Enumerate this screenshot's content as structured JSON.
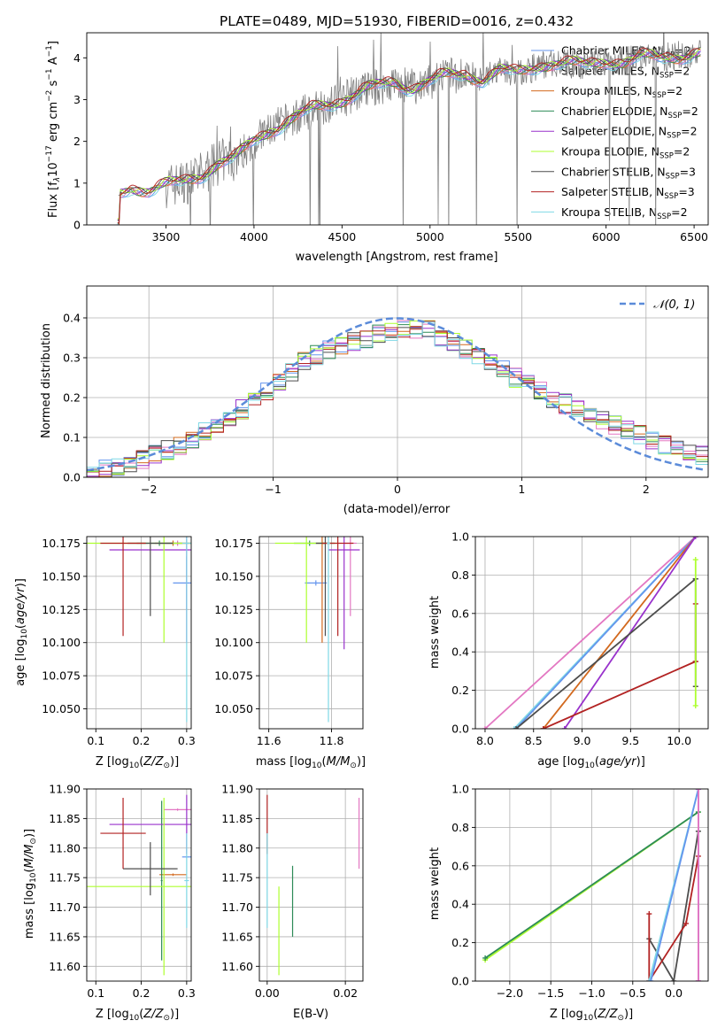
{
  "colors": {
    "chabrier_miles": "#6495ED",
    "salpeter_miles": "#E377C2",
    "kroupa_miles": "#D2691E",
    "chabrier_elodie": "#2E8B57",
    "salpeter_elodie": "#9932CC",
    "kroupa_elodie": "#ADFF2F",
    "chabrier_stelib": "#4D4D4D",
    "salpeter_stelib": "#B22222",
    "kroupa_stelib": "#7FD8E6",
    "observed": "#808080",
    "normal": "#5B8BD9",
    "grid": "#B0B0B0"
  },
  "chart_data": [
    {
      "id": "spectrum",
      "type": "line",
      "title": "PLATE=0489, MJD=51930, FIBERID=0016, z=0.432",
      "xlabel": "wavelength [Angstrom, rest frame]",
      "ylabel": "Flux [f_λ 10^-17 erg cm^-2 s^-1 A^-1]",
      "xlim": [
        3050,
        6580
      ],
      "ylim": [
        0,
        4.6
      ],
      "xticks": [
        3500,
        4000,
        4500,
        5000,
        5500,
        6000,
        6500
      ],
      "yticks": [
        0,
        1,
        2,
        3,
        4
      ],
      "grid": false,
      "legend_position": "upper right",
      "observed_x": [
        3230,
        3300,
        3400,
        3500,
        3600,
        3700,
        3800,
        3900,
        4000,
        4100,
        4200,
        4300,
        4400,
        4500,
        4600,
        4700,
        4800,
        4900,
        5000,
        5100,
        5200,
        5300,
        5400,
        5500,
        5600,
        5700,
        5800,
        5900,
        6000,
        6100,
        6200,
        6300,
        6400,
        6500
      ],
      "observed_y": [
        0.7,
        0.9,
        0.85,
        0.95,
        1.0,
        1.2,
        1.5,
        1.6,
        2.0,
        2.3,
        2.5,
        2.7,
        2.85,
        3.0,
        3.2,
        3.3,
        3.4,
        3.3,
        3.45,
        3.55,
        3.6,
        3.5,
        3.7,
        3.6,
        3.8,
        3.9,
        3.85,
        3.8,
        3.95,
        3.9,
        4.0,
        4.0,
        4.05,
        4.1
      ],
      "legend": [
        {
          "name": "Chabrier MILES, N_SSP=2",
          "label_main": "Chabrier MILES, N",
          "label_sub": "SSP",
          "label_tail": "=2",
          "color_key": "chabrier_miles"
        },
        {
          "name": "Salpeter MILES, N_SSP=2",
          "label_main": "Salpeter MILES, N",
          "label_sub": "SSP",
          "label_tail": "=2",
          "color_key": "salpeter_miles"
        },
        {
          "name": "Kroupa MILES, N_SSP=2",
          "label_main": "Kroupa MILES, N",
          "label_sub": "SSP",
          "label_tail": "=2",
          "color_key": "kroupa_miles"
        },
        {
          "name": "Chabrier ELODIE, N_SSP=2",
          "label_main": "Chabrier ELODIE, N",
          "label_sub": "SSP",
          "label_tail": "=2",
          "color_key": "chabrier_elodie"
        },
        {
          "name": "Salpeter ELODIE, N_SSP=2",
          "label_main": "Salpeter ELODIE, N",
          "label_sub": "SSP",
          "label_tail": "=2",
          "color_key": "salpeter_elodie"
        },
        {
          "name": "Kroupa ELODIE, N_SSP=2",
          "label_main": "Kroupa ELODIE, N",
          "label_sub": "SSP",
          "label_tail": "=2",
          "color_key": "kroupa_elodie"
        },
        {
          "name": "Chabrier STELIB, N_SSP=3",
          "label_main": "Chabrier STELIB, N",
          "label_sub": "SSP",
          "label_tail": "=3",
          "color_key": "chabrier_stelib"
        },
        {
          "name": "Salpeter STELIB, N_SSP=3",
          "label_main": "Salpeter STELIB, N",
          "label_sub": "SSP",
          "label_tail": "=3",
          "color_key": "salpeter_stelib"
        },
        {
          "name": "Kroupa STELIB, N_SSP=2",
          "label_main": "Kroupa STELIB, N",
          "label_sub": "SSP",
          "label_tail": "=2",
          "color_key": "kroupa_stelib"
        }
      ]
    },
    {
      "id": "residuals",
      "type": "line",
      "xlabel": "(data-model)/error",
      "ylabel": "Normed distribution",
      "xlim": [
        -2.5,
        2.5
      ],
      "ylim": [
        0,
        0.48
      ],
      "xticks": [
        -2,
        -1,
        0,
        1,
        2
      ],
      "yticks": [
        0.0,
        0.1,
        0.2,
        0.3,
        0.4
      ],
      "grid": true,
      "legend_position": "upper right",
      "legend_label": "𝒩(0, 1)",
      "hist_x": [
        -2.5,
        -2.25,
        -2.0,
        -1.75,
        -1.5,
        -1.25,
        -1.0,
        -0.75,
        -0.5,
        -0.25,
        0.0,
        0.25,
        0.5,
        0.75,
        1.0,
        1.25,
        1.5,
        1.75,
        2.0,
        2.25,
        2.5
      ],
      "hist_y": [
        0.01,
        0.03,
        0.05,
        0.08,
        0.12,
        0.17,
        0.23,
        0.29,
        0.33,
        0.35,
        0.37,
        0.37,
        0.33,
        0.29,
        0.24,
        0.2,
        0.16,
        0.13,
        0.1,
        0.07,
        0.05
      ]
    },
    {
      "id": "age_vs_z",
      "type": "scatter",
      "xlabel": "Z [log10(Z/Z⊙)]",
      "ylabel": "age [log10(age/yr)]",
      "xlim": [
        0.08,
        0.31
      ],
      "ylim": [
        10.035,
        10.18
      ],
      "xticks": [
        0.1,
        0.2,
        0.3
      ],
      "yticks": [
        10.05,
        10.075,
        10.1,
        10.125,
        10.15,
        10.175
      ],
      "grid": true,
      "points": [
        {
          "color_key": "chabrier_miles",
          "x": 0.3,
          "y": 10.145,
          "xerr": 0.03,
          "yerr": 0.02
        },
        {
          "color_key": "salpeter_miles",
          "x": 0.28,
          "y": 10.175,
          "xerr": 0.03,
          "yerr": 0.002
        },
        {
          "color_key": "kroupa_miles",
          "x": 0.27,
          "y": 10.175,
          "xerr": 0.04,
          "yerr": 0.002
        },
        {
          "color_key": "chabrier_elodie",
          "x": 0.24,
          "y": 10.175,
          "xerr": 0.05,
          "yerr": 0.002
        },
        {
          "color_key": "salpeter_elodie",
          "x": 0.3,
          "y": 10.17,
          "xerr": 0.17,
          "yerr": 0.07
        },
        {
          "color_key": "kroupa_elodie",
          "x": 0.25,
          "y": 10.175,
          "xerr": 0.17,
          "yerr": 0.075
        },
        {
          "color_key": "chabrier_stelib",
          "x": 0.22,
          "y": 10.175,
          "xerr": 0.05,
          "yerr": 0.055
        },
        {
          "color_key": "salpeter_stelib",
          "x": 0.16,
          "y": 10.175,
          "xerr": 0.05,
          "yerr": 0.07
        },
        {
          "color_key": "kroupa_stelib",
          "x": 0.3,
          "y": 10.175,
          "xerr": 0.01,
          "yerr": 0.135
        }
      ]
    },
    {
      "id": "age_vs_mass",
      "type": "scatter",
      "xlabel": "mass [log10(M/M⊙)]",
      "xlim": [
        11.57,
        11.9
      ],
      "ylim": [
        10.035,
        10.18
      ],
      "xticks": [
        11.6,
        11.8
      ],
      "yticks": [
        10.05,
        10.075,
        10.1,
        10.125,
        10.15,
        10.175
      ],
      "grid": true,
      "points": [
        {
          "color_key": "chabrier_miles",
          "x": 11.75,
          "y": 10.145,
          "xerr": 0.035,
          "yerr": 0.002
        },
        {
          "color_key": "salpeter_miles",
          "x": 11.86,
          "y": 10.175,
          "xerr": 0.02,
          "yerr": 0.055
        },
        {
          "color_key": "kroupa_miles",
          "x": 11.77,
          "y": 10.175,
          "xerr": 0.02,
          "yerr": 0.075
        },
        {
          "color_key": "chabrier_elodie",
          "x": 11.73,
          "y": 10.175,
          "xerr": 0.05,
          "yerr": 0.002
        },
        {
          "color_key": "salpeter_elodie",
          "x": 11.84,
          "y": 10.17,
          "xerr": 0.05,
          "yerr": 0.075
        },
        {
          "color_key": "kroupa_elodie",
          "x": 11.72,
          "y": 10.175,
          "xerr": 0.1,
          "yerr": 0.075
        },
        {
          "color_key": "chabrier_stelib",
          "x": 11.78,
          "y": 10.175,
          "xerr": 0.03,
          "yerr": 0.07
        },
        {
          "color_key": "salpeter_stelib",
          "x": 11.82,
          "y": 10.175,
          "xerr": 0.05,
          "yerr": 0.07
        },
        {
          "color_key": "kroupa_stelib",
          "x": 11.79,
          "y": 10.175,
          "xerr": 0.005,
          "yerr": 0.135
        }
      ]
    },
    {
      "id": "massweight_vs_age",
      "type": "line",
      "xlabel": "age log10(age/yr)",
      "ylabel": "mass weight",
      "xlim": [
        7.9,
        10.3
      ],
      "ylim": [
        0,
        1
      ],
      "xticks": [
        8.0,
        8.5,
        9.0,
        9.5,
        10.0
      ],
      "yticks": [
        0.0,
        0.2,
        0.4,
        0.6,
        0.8,
        1.0
      ],
      "grid": true,
      "lines": [
        {
          "color_key": "salpeter_miles",
          "x": [
            8.0,
            10.17
          ],
          "y": [
            0.0,
            1.0
          ]
        },
        {
          "color_key": "kroupa_stelib",
          "x": [
            8.3,
            10.17
          ],
          "y": [
            0.0,
            1.0
          ]
        },
        {
          "color_key": "chabrier_miles",
          "x": [
            8.32,
            10.17
          ],
          "y": [
            0.0,
            1.0
          ]
        },
        {
          "color_key": "kroupa_miles",
          "x": [
            8.6,
            10.17
          ],
          "y": [
            0.0,
            1.0
          ]
        },
        {
          "color_key": "salpeter_elodie",
          "x": [
            8.82,
            10.17
          ],
          "y": [
            0.0,
            1.0
          ]
        },
        {
          "color_key": "chabrier_stelib",
          "x": [
            8.32,
            10.17
          ],
          "y": [
            0.0,
            0.78
          ]
        },
        {
          "color_key": "salpeter_stelib",
          "x": [
            8.6,
            10.17
          ],
          "y": [
            0.0,
            0.35
          ]
        },
        {
          "color_key": "salpeter_stelib",
          "x": [
            10.17,
            10.17
          ],
          "y": [
            0.35,
            0.65
          ]
        },
        {
          "color_key": "chabrier_stelib",
          "x": [
            10.17,
            10.17
          ],
          "y": [
            0.22,
            0.78
          ]
        },
        {
          "color_key": "kroupa_elodie",
          "x": [
            10.17,
            10.17
          ],
          "y": [
            0.12,
            0.88
          ]
        }
      ]
    },
    {
      "id": "mass_vs_z",
      "type": "scatter",
      "xlabel": "Z [log10(Z/Z⊙)]",
      "ylabel": "mass [log10(M/M⊙)]",
      "xlim": [
        0.08,
        0.31
      ],
      "ylim": [
        11.575,
        11.9
      ],
      "xticks": [
        0.1,
        0.2,
        0.3
      ],
      "yticks": [
        11.6,
        11.65,
        11.7,
        11.75,
        11.8,
        11.85,
        11.9
      ],
      "grid": true,
      "points": [
        {
          "color_key": "chabrier_miles",
          "x": 0.3,
          "y": 11.785,
          "xerr": 0.01,
          "yerr": 0.002
        },
        {
          "color_key": "salpeter_miles",
          "x": 0.28,
          "y": 11.865,
          "xerr": 0.03,
          "yerr": 0.002
        },
        {
          "color_key": "kroupa_miles",
          "x": 0.27,
          "y": 11.755,
          "xerr": 0.03,
          "yerr": 0.002
        },
        {
          "color_key": "chabrier_elodie",
          "x": 0.245,
          "y": 11.745,
          "xerr": 0.002,
          "yerr": 0.135
        },
        {
          "color_key": "salpeter_elodie",
          "x": 0.3,
          "y": 11.84,
          "xerr": 0.17,
          "yerr": 0.05
        },
        {
          "color_key": "kroupa_elodie",
          "x": 0.25,
          "y": 11.735,
          "xerr": 0.17,
          "yerr": 0.15
        },
        {
          "color_key": "chabrier_stelib",
          "x": 0.22,
          "y": 11.765,
          "xerr": 0.06,
          "yerr": 0.045
        },
        {
          "color_key": "salpeter_stelib",
          "x": 0.16,
          "y": 11.825,
          "xerr": 0.05,
          "yerr": 0.06
        },
        {
          "color_key": "kroupa_stelib",
          "x": 0.3,
          "y": 11.745,
          "xerr": 0.005,
          "yerr": 0.08
        }
      ]
    },
    {
      "id": "mass_vs_ebv",
      "type": "scatter",
      "xlabel": "E(B-V)",
      "xlim": [
        -0.002,
        0.0245
      ],
      "ylim": [
        11.575,
        11.9
      ],
      "xticks": [
        0.0,
        0.02
      ],
      "xticklabels": [
        "0.00",
        "0.02"
      ],
      "yticks": [
        11.6,
        11.65,
        11.7,
        11.75,
        11.8,
        11.85,
        11.9
      ],
      "grid": true,
      "points": [
        {
          "color_key": "salpeter_stelib",
          "x": 0.0,
          "y": 11.84,
          "xerr": 0.0,
          "yerr": 0.05
        },
        {
          "color_key": "kroupa_stelib",
          "x": 0.0,
          "y": 11.745,
          "xerr": 0.0,
          "yerr": 0.08
        },
        {
          "color_key": "kroupa_elodie",
          "x": 0.003,
          "y": 11.66,
          "xerr": 0.0,
          "yerr": 0.075
        },
        {
          "color_key": "chabrier_elodie",
          "x": 0.0065,
          "y": 11.71,
          "xerr": 0.0,
          "yerr": 0.06
        },
        {
          "color_key": "salpeter_miles",
          "x": 0.0235,
          "y": 11.825,
          "xerr": 0.0,
          "yerr": 0.06
        }
      ]
    },
    {
      "id": "massweight_vs_z",
      "type": "line",
      "xlabel": "Z [log10(Z/Z⊙)]",
      "ylabel": "mass weight",
      "xlim": [
        -2.42,
        0.42
      ],
      "ylim": [
        0,
        1
      ],
      "xticks": [
        -2.0,
        -1.5,
        -1.0,
        -0.5,
        0.0
      ],
      "yticks": [
        0.0,
        0.2,
        0.4,
        0.6,
        0.8,
        1.0
      ],
      "grid": true,
      "lines": [
        {
          "color_key": "kroupa_elodie",
          "x": [
            -2.3,
            0.3
          ],
          "y": [
            0.11,
            0.88
          ]
        },
        {
          "color_key": "chabrier_elodie",
          "x": [
            -2.3,
            0.3
          ],
          "y": [
            0.12,
            0.88
          ]
        },
        {
          "color_key": "chabrier_stelib",
          "x": [
            -0.3,
            0.0,
            0.3
          ],
          "y": [
            0.22,
            0.0,
            0.78
          ]
        },
        {
          "color_key": "salpeter_stelib",
          "x": [
            -0.3,
            0.15,
            0.3
          ],
          "y": [
            0.0,
            0.3,
            0.65
          ]
        },
        {
          "color_key": "salpeter_stelib",
          "x": [
            -0.3,
            -0.3
          ],
          "y": [
            0.0,
            0.35
          ]
        },
        {
          "color_key": "kroupa_stelib",
          "x": [
            -0.3,
            0.3
          ],
          "y": [
            0.0,
            1.0
          ]
        },
        {
          "color_key": "chabrier_miles",
          "x": [
            -0.28,
            0.3
          ],
          "y": [
            0.0,
            1.0
          ]
        },
        {
          "color_key": "salpeter_elodie",
          "x": [
            0.3,
            0.3
          ],
          "y": [
            0.0,
            1.0
          ]
        },
        {
          "color_key": "salpeter_miles",
          "x": [
            0.3,
            0.3
          ],
          "y": [
            0.0,
            1.0
          ]
        }
      ]
    }
  ]
}
